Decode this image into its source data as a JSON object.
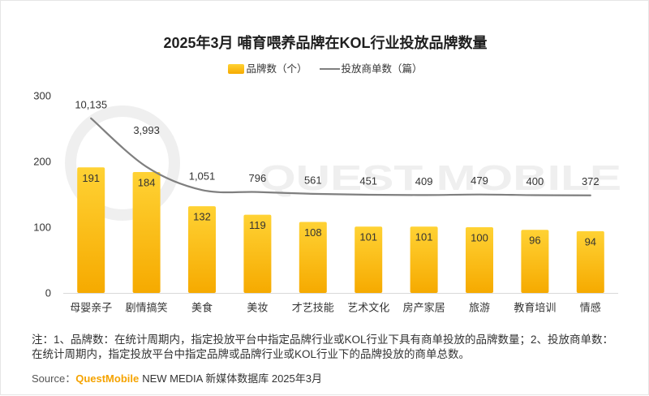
{
  "colors": {
    "bar_top": "#FFD234",
    "bar_bottom": "#F6AA00",
    "line": "#7F7F7F",
    "source_brand": "#F5A300",
    "watermark": "#EFEFEF"
  },
  "watermark": "QUEST MOBILE",
  "chart_data": {
    "type": "bar",
    "title": "2025年3月 哺育喂养品牌在KOL行业投放品牌数量",
    "categories": [
      "母婴亲子",
      "剧情搞笑",
      "美食",
      "美妆",
      "才艺技能",
      "艺术文化",
      "房产家居",
      "旅游",
      "教育培训",
      "情感"
    ],
    "series": [
      {
        "name": "品牌数（个）",
        "type": "bar",
        "axis": "primary",
        "values": [
          191,
          184,
          132,
          119,
          108,
          101,
          101,
          100,
          96,
          94
        ],
        "data_labels": [
          "191",
          "184",
          "132",
          "119",
          "108",
          "101",
          "101",
          "100",
          "96",
          "94"
        ]
      },
      {
        "name": "投放商单数（篇）",
        "type": "line",
        "axis": "secondary",
        "smooth": true,
        "values": [
          10135,
          3993,
          1051,
          796,
          561,
          451,
          409,
          479,
          400,
          372
        ],
        "data_labels": [
          "10,135",
          "3,993",
          "1,051",
          "796",
          "561",
          "451",
          "409",
          "479",
          "400",
          "372"
        ]
      }
    ],
    "ylim": [
      0,
      300
    ],
    "yticks": [
      0,
      100,
      200,
      300
    ],
    "grid": false,
    "legend_position": "top"
  },
  "notes": [
    "注：1、品牌数：在统计周期内，指定投放平台中指定品牌行业或KOL行业下具有商单投放的品牌数量；2、投放商单数：",
    "在统计周期内，指定投放平台中指定品牌或品牌行业或KOL行业下的品牌投放的商单总数。"
  ],
  "source": {
    "prefix": "Source：",
    "brand": "QuestMobile",
    "text": "NEW MEDIA 新媒体数据库 2025年3月"
  }
}
